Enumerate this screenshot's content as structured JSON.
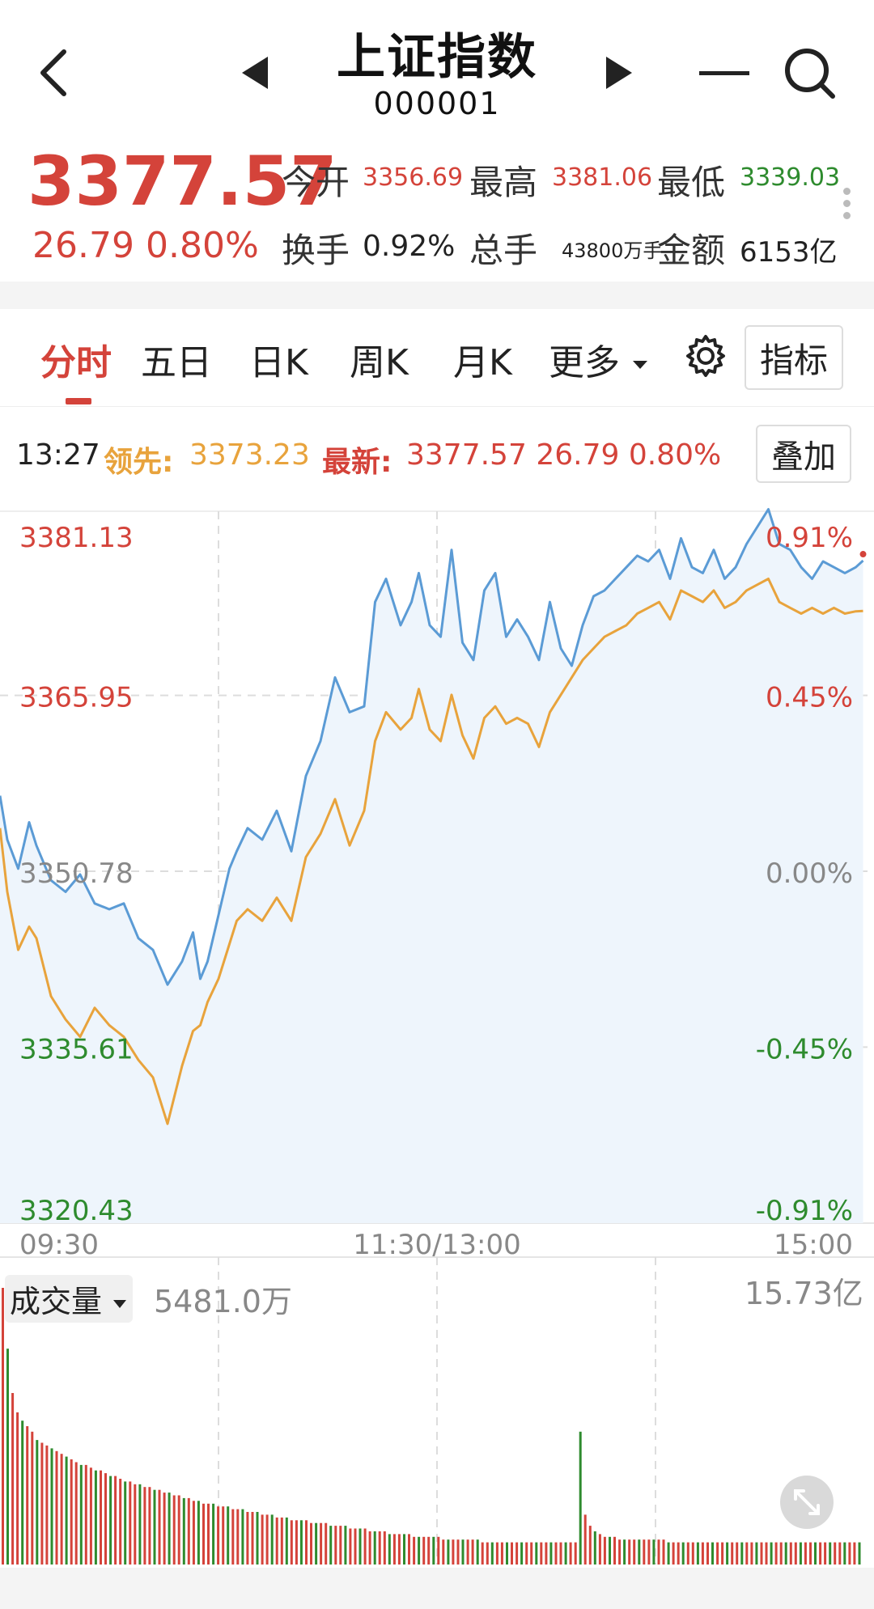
{
  "header": {
    "title": "上证指数",
    "code": "000001",
    "back_icon": "back-arrow-icon",
    "prev_icon": "prev-triangle-icon",
    "next_icon": "next-triangle-icon",
    "menu_icon": "minus-icon",
    "search_icon": "search-icon"
  },
  "quote": {
    "price": "3377.57",
    "change": "26.79",
    "change_pct": "0.80%",
    "open_label": "今开",
    "open": "3356.69",
    "high_label": "最高",
    "high": "3381.06",
    "low_label": "最低",
    "low": "3339.03",
    "turnover_label": "换手",
    "turnover": "0.92%",
    "volume_label": "总手",
    "volume": "43800万手",
    "amount_label": "金额",
    "amount": "6153亿"
  },
  "tabs": {
    "items": [
      "分时",
      "五日",
      "日K",
      "周K",
      "月K",
      "更多"
    ],
    "active": "分时",
    "settings_icon": "gear-icon",
    "indicator_label": "指标"
  },
  "info": {
    "time": "13:27",
    "lead_label": "领先:",
    "lead_value": "3373.23",
    "latest_label": "最新:",
    "latest_value": "3377.57 26.79 0.80%",
    "overlay_label": "叠加"
  },
  "colors": {
    "up": "#d4433a",
    "down": "#2e8b2e",
    "price_line": "#5b9bd5",
    "lead_line": "#e8a33c",
    "area_fill": "#eef5fc"
  },
  "chart_data": [
    {
      "type": "line",
      "title": "",
      "x_ticks": [
        "09:30",
        "11:30/13:00",
        "15:00"
      ],
      "y_ticks_left": [
        "3381.13",
        "3365.95",
        "3350.78",
        "3335.61",
        "3320.43"
      ],
      "y_ticks_right": [
        "0.91%",
        "0.45%",
        "0.00%",
        "-0.45%",
        "-0.91%"
      ],
      "ylim": [
        3320.43,
        3381.13
      ],
      "prev_close": 3350.78,
      "total_minutes": 240,
      "series": [
        {
          "name": "最新",
          "color": "#5b9bd5",
          "x": [
            0,
            2,
            5,
            8,
            10,
            14,
            18,
            22,
            26,
            30,
            34,
            38,
            42,
            46,
            50,
            53,
            55,
            57,
            60,
            63,
            65,
            68,
            72,
            76,
            80,
            84,
            88,
            92,
            96,
            100,
            103,
            106,
            110,
            113,
            115,
            118,
            121,
            124,
            127,
            130,
            133,
            136,
            139,
            142,
            145,
            148,
            151,
            154,
            157,
            160,
            163,
            166,
            169,
            172,
            175,
            178,
            181,
            184,
            187,
            190,
            193,
            196,
            199,
            202,
            205,
            208,
            211,
            214,
            217,
            220,
            223,
            226,
            229,
            232,
            235,
            237
          ],
          "y": [
            3357.3,
            3353.5,
            3351.0,
            3355.0,
            3353.0,
            3350.0,
            3349.0,
            3350.5,
            3348.0,
            3347.5,
            3348.0,
            3345.0,
            3344.0,
            3341.0,
            3343.0,
            3345.5,
            3341.5,
            3343.0,
            3347.0,
            3351.0,
            3352.5,
            3354.5,
            3353.5,
            3356.0,
            3352.5,
            3359.0,
            3362.0,
            3367.5,
            3364.5,
            3365.0,
            3374.0,
            3376.0,
            3372.0,
            3374.0,
            3376.5,
            3372.0,
            3371.0,
            3378.5,
            3370.5,
            3369.0,
            3375.0,
            3376.5,
            3371.0,
            3372.5,
            3371.0,
            3369.0,
            3374.0,
            3370.0,
            3368.5,
            3372.0,
            3374.5,
            3375.0,
            3376.0,
            3377.0,
            3378.0,
            3377.5,
            3378.5,
            3376.0,
            3379.5,
            3377.0,
            3376.5,
            3378.5,
            3376.0,
            3377.0,
            3379.0,
            3380.5,
            3382.0,
            3379.0,
            3378.5,
            3377.0,
            3376.0,
            3377.5,
            3377.0,
            3376.5,
            3377.0,
            3377.57
          ]
        },
        {
          "name": "领先",
          "color": "#e8a33c",
          "x": [
            0,
            2,
            5,
            8,
            10,
            14,
            18,
            22,
            26,
            30,
            34,
            38,
            42,
            46,
            50,
            53,
            55,
            57,
            60,
            63,
            65,
            68,
            72,
            76,
            80,
            84,
            88,
            92,
            96,
            100,
            103,
            106,
            110,
            113,
            115,
            118,
            121,
            124,
            127,
            130,
            133,
            136,
            139,
            142,
            145,
            148,
            151,
            154,
            157,
            160,
            163,
            166,
            169,
            172,
            175,
            178,
            181,
            184,
            187,
            190,
            193,
            196,
            199,
            202,
            205,
            208,
            211,
            214,
            217,
            220,
            223,
            226,
            229,
            232,
            235,
            237
          ],
          "y": [
            3354.5,
            3349.0,
            3344.0,
            3346.0,
            3345.0,
            3340.0,
            3338.0,
            3336.5,
            3339.0,
            3337.5,
            3336.5,
            3334.5,
            3333.0,
            3329.0,
            3334.0,
            3337.0,
            3337.5,
            3339.5,
            3341.5,
            3344.5,
            3346.5,
            3347.5,
            3346.5,
            3348.5,
            3346.5,
            3352.0,
            3354.0,
            3357.0,
            3353.0,
            3356.0,
            3362.0,
            3364.5,
            3363.0,
            3364.0,
            3366.5,
            3363.0,
            3362.0,
            3366.0,
            3362.5,
            3360.5,
            3364.0,
            3365.0,
            3363.5,
            3364.0,
            3363.5,
            3361.5,
            3364.5,
            3366.0,
            3367.5,
            3369.0,
            3370.0,
            3371.0,
            3371.5,
            3372.0,
            3373.0,
            3373.5,
            3374.0,
            3372.5,
            3375.0,
            3374.5,
            3374.0,
            3375.0,
            3373.5,
            3374.0,
            3375.0,
            3375.5,
            3376.0,
            3374.0,
            3373.5,
            3373.0,
            3373.5,
            3373.0,
            3373.5,
            3373.0,
            3373.2,
            3373.23
          ]
        }
      ]
    },
    {
      "type": "bar",
      "title": "成交量",
      "label": "成交量",
      "current_volume": "5481.0万",
      "max_label": "15.73亿",
      "values": [
        1.0,
        0.78,
        0.62,
        0.55,
        0.52,
        0.5,
        0.48,
        0.45,
        0.44,
        0.43,
        0.42,
        0.41,
        0.4,
        0.39,
        0.38,
        0.37,
        0.36,
        0.36,
        0.35,
        0.34,
        0.34,
        0.33,
        0.32,
        0.32,
        0.31,
        0.3,
        0.3,
        0.29,
        0.29,
        0.28,
        0.28,
        0.27,
        0.27,
        0.26,
        0.26,
        0.25,
        0.25,
        0.24,
        0.24,
        0.23,
        0.23,
        0.22,
        0.22,
        0.22,
        0.21,
        0.21,
        0.21,
        0.2,
        0.2,
        0.2,
        0.19,
        0.19,
        0.19,
        0.18,
        0.18,
        0.18,
        0.17,
        0.17,
        0.17,
        0.16,
        0.16,
        0.16,
        0.16,
        0.15,
        0.15,
        0.15,
        0.15,
        0.14,
        0.14,
        0.14,
        0.14,
        0.13,
        0.13,
        0.13,
        0.13,
        0.12,
        0.12,
        0.12,
        0.12,
        0.11,
        0.11,
        0.11,
        0.11,
        0.11,
        0.1,
        0.1,
        0.1,
        0.1,
        0.1,
        0.1,
        0.09,
        0.09,
        0.09,
        0.09,
        0.09,
        0.09,
        0.09,
        0.09,
        0.08,
        0.08,
        0.08,
        0.08,
        0.08,
        0.08,
        0.08,
        0.08,
        0.08,
        0.08,
        0.08,
        0.08,
        0.08,
        0.08,
        0.08,
        0.08,
        0.08,
        0.08,
        0.08,
        0.08,
        0.48,
        0.18,
        0.14,
        0.12,
        0.11,
        0.1,
        0.1,
        0.1,
        0.09,
        0.09,
        0.09,
        0.09,
        0.09,
        0.09,
        0.09,
        0.09,
        0.09,
        0.09,
        0.08,
        0.08,
        0.08,
        0.08,
        0.08,
        0.08,
        0.08,
        0.08,
        0.08,
        0.08,
        0.08,
        0.08,
        0.08,
        0.08,
        0.08,
        0.08,
        0.08,
        0.08,
        0.08,
        0.08,
        0.08,
        0.08,
        0.08,
        0.08,
        0.08,
        0.08,
        0.08,
        0.08,
        0.08,
        0.08,
        0.08,
        0.08,
        0.08,
        0.08,
        0.08,
        0.08,
        0.08,
        0.08,
        0.08,
        0.08
      ],
      "expand_icon": "expand-icon"
    }
  ]
}
